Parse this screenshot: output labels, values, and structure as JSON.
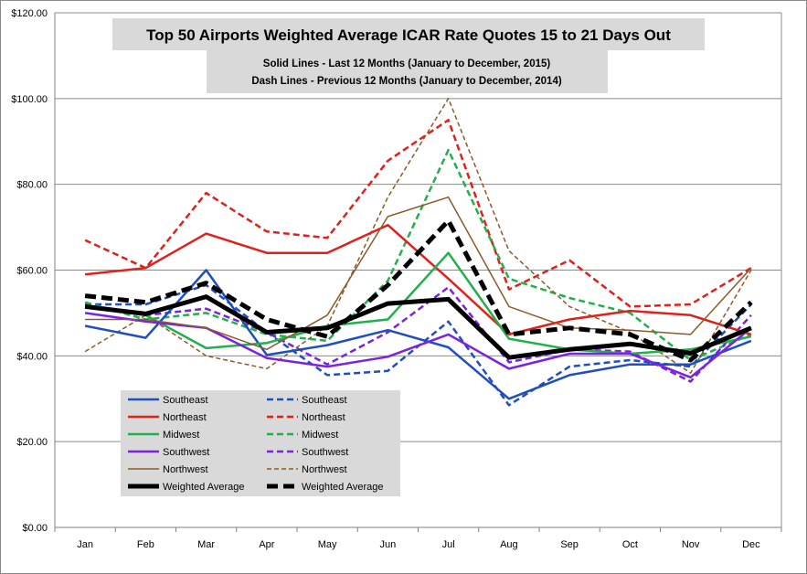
{
  "chart_data": {
    "type": "line",
    "title": "Top 50 Airports Weighted Average ICAR Rate Quotes 15 to 21 Days Out",
    "subtitle_lines": [
      "Solid Lines - Last 12 Months  (January to December, 2015)",
      "Dash Lines - Previous 12 Months (January to December, 2014)"
    ],
    "categories": [
      "Jan",
      "Feb",
      "Mar",
      "Apr",
      "May",
      "Jun",
      "Jul",
      "Aug",
      "Sep",
      "Oct",
      "Nov",
      "Dec"
    ],
    "y_ticks": [
      "$0.00",
      "$20.00",
      "$40.00",
      "$60.00",
      "$80.00",
      "$100.00",
      "$120.00"
    ],
    "ylim": [
      0,
      120
    ],
    "grid": true,
    "legend_position": "bottom-left",
    "series": [
      {
        "name": "Southeast",
        "style": "solid",
        "color": "#1f4fbf",
        "values": [
          47,
          44.2,
          60,
          40.2,
          42.5,
          46,
          42,
          30,
          35.5,
          38,
          38,
          43.5
        ]
      },
      {
        "name": "Northeast",
        "style": "solid",
        "color": "#e0201b",
        "values": [
          59,
          60.5,
          68.5,
          64,
          64,
          70.5,
          58,
          45,
          48.5,
          50.5,
          49.5,
          45
        ]
      },
      {
        "name": "Midwest",
        "style": "solid",
        "color": "#21b04c",
        "values": [
          51.5,
          49.5,
          41.8,
          43,
          47,
          48.5,
          64,
          44,
          41.5,
          40.5,
          41.5,
          44.5
        ]
      },
      {
        "name": "Southwest",
        "style": "solid",
        "color": "#7b22e0",
        "values": [
          50,
          48,
          46.5,
          39.5,
          37.5,
          39.8,
          45,
          37,
          40.5,
          40.5,
          35,
          46.5
        ]
      },
      {
        "name": "Northwest",
        "style": "solid",
        "color": "#8b5a2b",
        "values": [
          48.5,
          48.5,
          46.5,
          41.5,
          49.5,
          72.5,
          77,
          51.5,
          46.5,
          46,
          45,
          60.5
        ]
      },
      {
        "name": "Weighted Average",
        "style": "solid",
        "color": "#000000",
        "values": [
          51.5,
          49.8,
          53.8,
          45.5,
          46.5,
          52.2,
          53.2,
          39.6,
          41.5,
          42.8,
          40.6,
          46.5
        ]
      },
      {
        "name": "Southeast",
        "style": "dashed",
        "color": "#1f4fbf",
        "values": [
          52,
          52,
          56.5,
          45.5,
          35.5,
          36.5,
          48,
          28.5,
          37.5,
          39,
          37.5,
          52
        ]
      },
      {
        "name": "Northeast",
        "style": "dashed",
        "color": "#e0201b",
        "values": [
          67,
          60.5,
          78,
          69,
          67.5,
          85.5,
          95,
          55.5,
          62.3,
          51.5,
          52,
          60.5
        ]
      },
      {
        "name": "Midwest",
        "style": "dashed",
        "color": "#21b04c",
        "values": [
          52.5,
          48.5,
          50,
          45,
          43.5,
          57.5,
          88,
          58,
          53.5,
          50,
          39,
          45
        ]
      },
      {
        "name": "Southwest",
        "style": "dashed",
        "color": "#7b22e0",
        "values": [
          51.5,
          49.5,
          51,
          45.5,
          38,
          45.5,
          56,
          38.5,
          41.5,
          41,
          34,
          49.5
        ]
      },
      {
        "name": "Northwest",
        "style": "dashed",
        "color": "#8b5a2b",
        "values": [
          41,
          49.5,
          40,
          37,
          47,
          77,
          100,
          64.5,
          51.5,
          45.5,
          36,
          60
        ]
      },
      {
        "name": "Weighted Average",
        "style": "dashed",
        "color": "#000000",
        "values": [
          54,
          52.5,
          57,
          48.5,
          44.5,
          56.5,
          71.5,
          45,
          46.5,
          45,
          39,
          52.5
        ]
      }
    ]
  }
}
